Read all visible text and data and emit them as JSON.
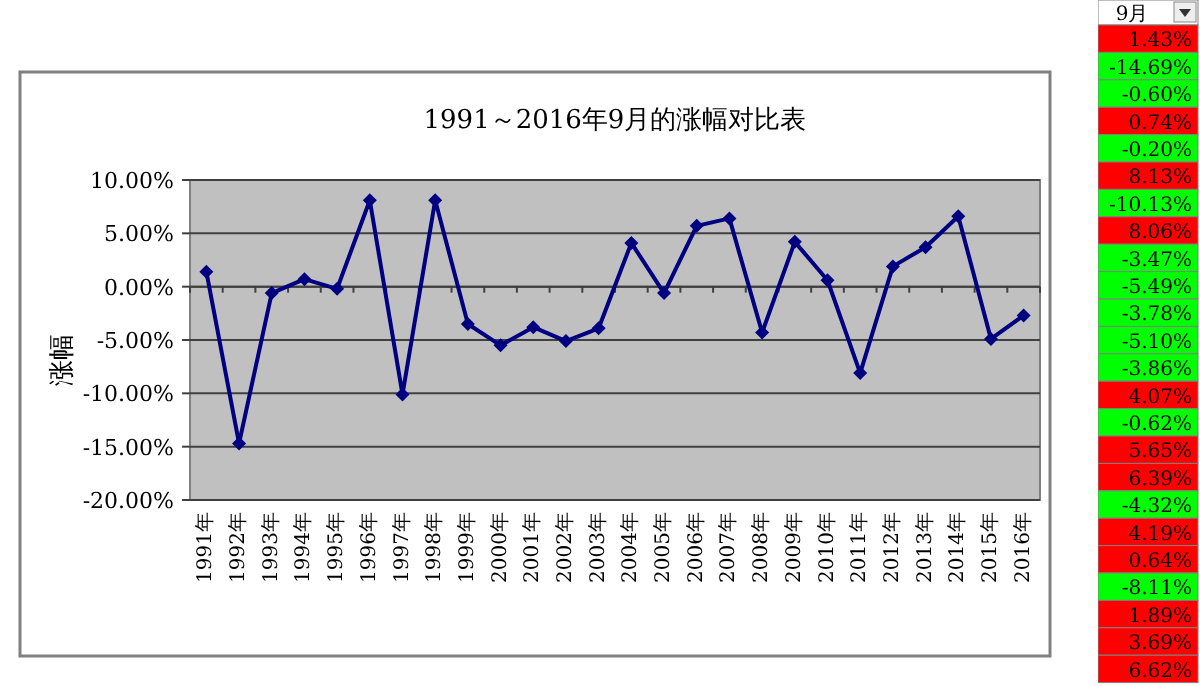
{
  "chart_data": [
    {
      "type": "line",
      "title": "1991～2016年9月的涨幅对比表",
      "ylabel": "涨幅",
      "categories": [
        "1991年",
        "1992年",
        "1993年",
        "1994年",
        "1995年",
        "1996年",
        "1997年",
        "1998年",
        "1999年",
        "2000年",
        "2001年",
        "2002年",
        "2003年",
        "2004年",
        "2005年",
        "2006年",
        "2007年",
        "2008年",
        "2009年",
        "2010年",
        "2011年",
        "2012年",
        "2013年",
        "2014年",
        "2015年",
        "2016年"
      ],
      "series": [
        {
          "color": "#000080",
          "values": [
            1.4,
            -14.7,
            -0.6,
            0.7,
            -0.2,
            8.1,
            -10.1,
            8.1,
            -3.5,
            -5.5,
            -3.8,
            -5.1,
            -3.9,
            4.1,
            -0.6,
            5.7,
            6.4,
            -4.3,
            4.2,
            0.6,
            -8.1,
            1.9,
            3.7,
            6.6,
            -4.9,
            -2.7
          ]
        }
      ],
      "ylim": [
        -20,
        10
      ],
      "yticks": [
        {
          "value": -20,
          "label": "-20.00%"
        },
        {
          "value": -15,
          "label": "-15.00%"
        },
        {
          "value": -10,
          "label": "-10.00%"
        },
        {
          "value": -5,
          "label": "-5.00%"
        },
        {
          "value": 0,
          "label": "0.00%"
        },
        {
          "value": 5,
          "label": "5.00%"
        },
        {
          "value": 10,
          "label": "10.00%"
        }
      ],
      "grid": "y",
      "marker": "diamond",
      "line_style": "solid"
    },
    {
      "type": "other",
      "title": "9月",
      "annotations": [
        "1.43%",
        "-14.69%",
        "-0.60%",
        "0.74%",
        "-0.20%",
        "8.13%",
        "-10.13%",
        "8.06%",
        "-3.47%",
        "-5.49%",
        "-3.78%",
        "-5.10%",
        "-3.86%",
        "4.07%",
        "-0.62%",
        "5.65%",
        "6.39%",
        "-4.32%",
        "4.19%",
        "0.64%",
        "-8.11%",
        "1.89%",
        "3.69%",
        "6.62%"
      ],
      "colors": [
        "#ff0000",
        "#00ff00",
        "#00ff00",
        "#ff0000",
        "#00ff00",
        "#ff0000",
        "#00ff00",
        "#ff0000",
        "#00ff00",
        "#00ff00",
        "#00ff00",
        "#00ff00",
        "#00ff00",
        "#ff0000",
        "#00ff00",
        "#ff0000",
        "#ff0000",
        "#00ff00",
        "#ff0000",
        "#ff0000",
        "#00ff00",
        "#ff0000",
        "#ff0000",
        "#ff0000"
      ]
    }
  ]
}
